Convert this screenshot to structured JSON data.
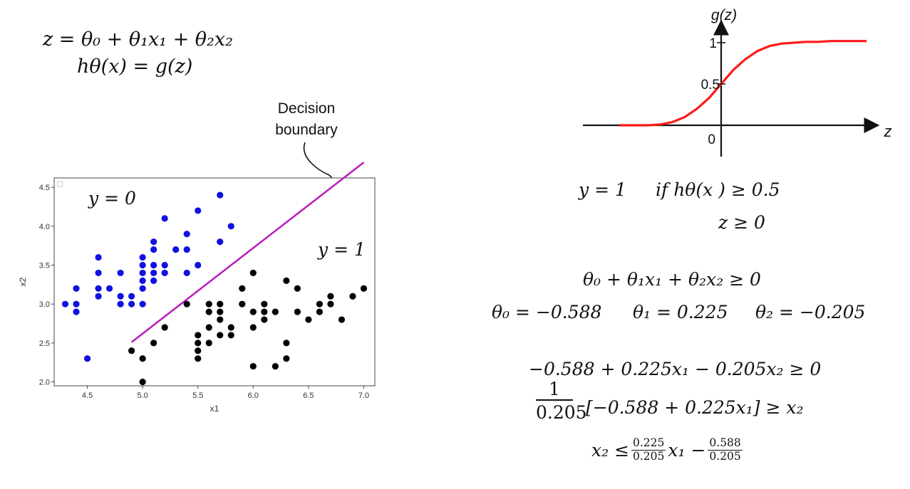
{
  "equations": {
    "z_def": "z = θ₀ + θ₁x₁ + θ₂x₂",
    "h_def": "hθ(x) = g(z)",
    "rule_y": "y = 1",
    "rule_if": "if hθ(x ) ≥ 0.5",
    "rule_z": "z ≥ 0",
    "ineq": "θ₀ + θ₁x₁ + θ₂x₂ ≥ 0",
    "theta0": "θ₀ = −0.588",
    "theta1": "θ₁ = 0.225",
    "theta2": "θ₂ = −0.205",
    "ineq_num": "−0.588 + 0.225x₁ − 0.205x₂ ≥ 0",
    "frac_one": "1",
    "frac_den": "0.205",
    "ineq_solved": "[−0.588 + 0.225x₁] ≥ x₂",
    "final_lhs": "x₂ ≤",
    "final_f1_num": "0.225",
    "final_f1_den": "0.205",
    "final_mid": "x₁ −",
    "final_f2_num": "0.588",
    "final_f2_den": "0.205"
  },
  "annotation": {
    "line1": "Decision",
    "line2": "boundary"
  },
  "colors": {
    "class0": "#1010e0",
    "class1": "#000000",
    "boundary": "#bb22bb",
    "sigmoid": "#ff1a1a"
  },
  "chart_data": [
    {
      "type": "scatter",
      "title": "",
      "xlabel": "x1",
      "ylabel": "x2",
      "xlim": [
        4.2,
        7.1
      ],
      "ylim": [
        1.95,
        4.62
      ],
      "xticks": [
        "4.5",
        "5.0",
        "5.5",
        "6.0",
        "6.5",
        "7.0"
      ],
      "yticks": [
        "2.0",
        "2.5",
        "3.0",
        "3.5",
        "4.0",
        "4.5"
      ],
      "region_labels": [
        "y = 0",
        "y = 1"
      ],
      "series": [
        {
          "label": "y = 0",
          "color": "#1010e0",
          "points": [
            [
              4.3,
              3.0
            ],
            [
              4.4,
              2.9
            ],
            [
              4.4,
              3.0
            ],
            [
              4.4,
              3.2
            ],
            [
              4.5,
              2.3
            ],
            [
              4.6,
              3.1
            ],
            [
              4.6,
              3.2
            ],
            [
              4.6,
              3.4
            ],
            [
              4.6,
              3.6
            ],
            [
              4.7,
              3.2
            ],
            [
              4.8,
              3.0
            ],
            [
              4.8,
              3.1
            ],
            [
              4.8,
              3.4
            ],
            [
              4.9,
              3.0
            ],
            [
              4.9,
              3.1
            ],
            [
              5.0,
              3.0
            ],
            [
              5.0,
              3.2
            ],
            [
              5.0,
              3.3
            ],
            [
              5.0,
              3.4
            ],
            [
              5.0,
              3.5
            ],
            [
              5.0,
              3.6
            ],
            [
              5.1,
              3.3
            ],
            [
              5.1,
              3.5
            ],
            [
              5.1,
              3.7
            ],
            [
              5.1,
              3.8
            ],
            [
              5.1,
              3.4
            ],
            [
              5.2,
              3.4
            ],
            [
              5.2,
              3.5
            ],
            [
              5.2,
              4.1
            ],
            [
              5.3,
              3.7
            ],
            [
              5.4,
              3.4
            ],
            [
              5.4,
              3.7
            ],
            [
              5.4,
              3.9
            ],
            [
              5.5,
              3.5
            ],
            [
              5.5,
              4.2
            ],
            [
              5.7,
              3.8
            ],
            [
              5.7,
              4.4
            ],
            [
              5.8,
              4.0
            ]
          ]
        },
        {
          "label": "y = 1",
          "color": "#000000",
          "points": [
            [
              4.9,
              2.4
            ],
            [
              5.0,
              2.0
            ],
            [
              5.0,
              2.3
            ],
            [
              5.1,
              2.5
            ],
            [
              5.2,
              2.7
            ],
            [
              5.4,
              3.0
            ],
            [
              5.5,
              2.3
            ],
            [
              5.5,
              2.4
            ],
            [
              5.5,
              2.5
            ],
            [
              5.5,
              2.6
            ],
            [
              5.6,
              2.5
            ],
            [
              5.6,
              2.7
            ],
            [
              5.6,
              2.9
            ],
            [
              5.6,
              3.0
            ],
            [
              5.7,
              2.6
            ],
            [
              5.7,
              2.8
            ],
            [
              5.7,
              2.9
            ],
            [
              5.7,
              3.0
            ],
            [
              5.8,
              2.6
            ],
            [
              5.8,
              2.7
            ],
            [
              5.9,
              3.0
            ],
            [
              5.9,
              3.2
            ],
            [
              6.0,
              2.2
            ],
            [
              6.0,
              2.7
            ],
            [
              6.0,
              2.9
            ],
            [
              6.0,
              3.4
            ],
            [
              6.1,
              2.8
            ],
            [
              6.1,
              2.9
            ],
            [
              6.1,
              3.0
            ],
            [
              6.2,
              2.2
            ],
            [
              6.2,
              2.9
            ],
            [
              6.3,
              2.3
            ],
            [
              6.3,
              2.5
            ],
            [
              6.3,
              3.3
            ],
            [
              6.4,
              2.9
            ],
            [
              6.4,
              3.2
            ],
            [
              6.5,
              2.8
            ],
            [
              6.6,
              2.9
            ],
            [
              6.6,
              3.0
            ],
            [
              6.7,
              3.0
            ],
            [
              6.7,
              3.1
            ],
            [
              6.8,
              2.8
            ],
            [
              6.9,
              3.1
            ],
            [
              7.0,
              3.2
            ]
          ]
        }
      ],
      "boundary_line": {
        "label": "Decision boundary",
        "x": [
          4.9,
          7.0
        ],
        "y": [
          2.51,
          4.82
        ]
      }
    },
    {
      "type": "line",
      "title": "",
      "xlabel": "z",
      "ylabel": "g(z)",
      "yticks": [
        "0",
        "0.5",
        "1"
      ],
      "xlim": [
        -6,
        6
      ],
      "ylim": [
        -0.3,
        1.25
      ],
      "series": [
        {
          "name": "",
          "color": "#ff1a1a",
          "x": [
            -4.2,
            -3.5,
            -3.0,
            -2.5,
            -2.0,
            -1.5,
            -1.0,
            -0.5,
            0.0,
            0.5,
            1.0,
            1.5,
            2.0,
            2.5,
            3.0,
            3.5,
            4.0,
            4.5,
            5.0,
            5.5,
            6.0
          ],
          "y": [
            0.0,
            0.0,
            0.0,
            0.01,
            0.04,
            0.1,
            0.2,
            0.33,
            0.5,
            0.67,
            0.8,
            0.9,
            0.96,
            0.99,
            1.0,
            1.01,
            1.01,
            1.02,
            1.02,
            1.02,
            1.02
          ]
        }
      ]
    }
  ]
}
